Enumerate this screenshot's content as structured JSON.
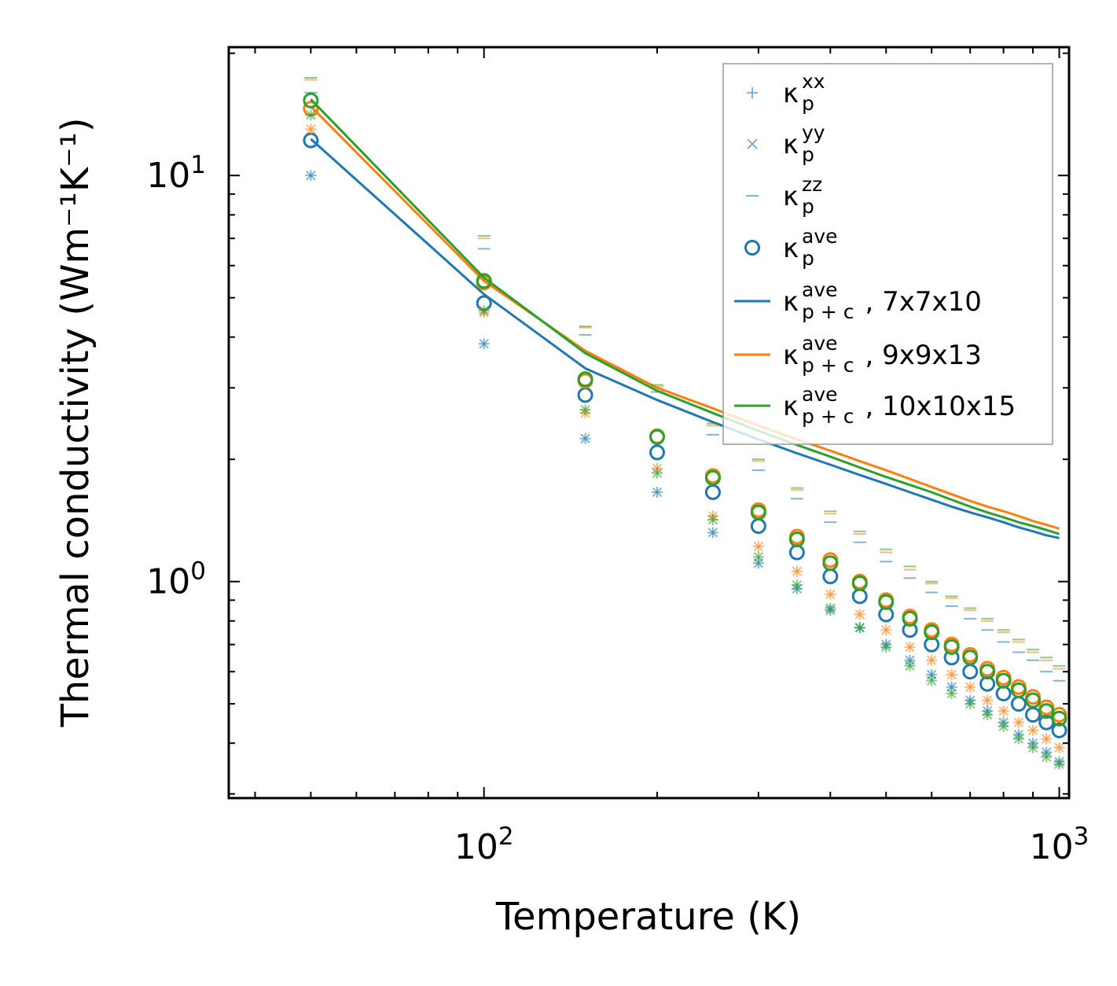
{
  "chart_data": {
    "type": "scatter",
    "title": "",
    "xlabel": "Temperature (K)",
    "ylabel": "Thermal conductivity (Wm⁻¹K⁻¹)",
    "xscale": "log",
    "yscale": "log",
    "xlim": [
      36,
      1040
    ],
    "ylim": [
      0.293,
      20.7
    ],
    "x_ticks": [
      {
        "base": "10",
        "exp": "2",
        "value": 100
      },
      {
        "base": "10",
        "exp": "3",
        "value": 1000
      }
    ],
    "y_ticks": [
      {
        "base": "10",
        "exp": "0",
        "value": 1
      },
      {
        "base": "10",
        "exp": "1",
        "value": 10
      }
    ],
    "x": [
      50,
      100,
      150,
      200,
      250,
      300,
      350,
      400,
      450,
      500,
      550,
      600,
      650,
      700,
      750,
      800,
      850,
      900,
      950,
      1000
    ],
    "series": [
      {
        "name": "7x7x10",
        "color": "#1f77b4",
        "xx": [
          10.0,
          3.85,
          2.25,
          1.66,
          1.32,
          1.11,
          0.96,
          0.85,
          0.77,
          0.7,
          0.64,
          0.59,
          0.55,
          0.51,
          0.48,
          0.45,
          0.42,
          0.4,
          0.38,
          0.36
        ],
        "yy": [
          10.0,
          3.85,
          2.25,
          1.66,
          1.32,
          1.11,
          0.96,
          0.85,
          0.77,
          0.7,
          0.64,
          0.59,
          0.55,
          0.51,
          0.48,
          0.45,
          0.42,
          0.4,
          0.38,
          0.36
        ],
        "zz": [
          16.0,
          6.6,
          4.05,
          2.93,
          2.3,
          1.88,
          1.6,
          1.4,
          1.25,
          1.12,
          1.02,
          0.94,
          0.87,
          0.81,
          0.76,
          0.71,
          0.67,
          0.64,
          0.6,
          0.57
        ],
        "ave": [
          12.2,
          4.85,
          2.88,
          2.08,
          1.66,
          1.37,
          1.18,
          1.03,
          0.92,
          0.83,
          0.76,
          0.7,
          0.65,
          0.6,
          0.56,
          0.53,
          0.5,
          0.47,
          0.45,
          0.43
        ],
        "line_label": "7x7x10",
        "line": [
          12.3,
          5.1,
          3.35,
          2.8,
          2.47,
          2.24,
          2.07,
          1.94,
          1.83,
          1.74,
          1.66,
          1.59,
          1.53,
          1.48,
          1.44,
          1.4,
          1.36,
          1.33,
          1.3,
          1.28
        ]
      },
      {
        "name": "9x9x13",
        "color": "#ff7f0e",
        "xx": [
          13.0,
          4.6,
          2.6,
          1.9,
          1.45,
          1.22,
          1.06,
          0.93,
          0.83,
          0.76,
          0.69,
          0.64,
          0.59,
          0.55,
          0.51,
          0.48,
          0.45,
          0.43,
          0.41,
          0.39
        ],
        "yy": [
          13.0,
          4.6,
          2.6,
          1.9,
          1.45,
          1.22,
          1.06,
          0.93,
          0.83,
          0.76,
          0.69,
          0.64,
          0.59,
          0.55,
          0.51,
          0.48,
          0.45,
          0.43,
          0.41,
          0.39
        ],
        "zz": [
          17.2,
          7.0,
          4.22,
          3.02,
          2.42,
          1.98,
          1.68,
          1.47,
          1.31,
          1.18,
          1.07,
          0.99,
          0.91,
          0.85,
          0.8,
          0.75,
          0.71,
          0.67,
          0.64,
          0.61
        ],
        "ave": [
          14.6,
          5.45,
          3.12,
          2.28,
          1.82,
          1.5,
          1.29,
          1.13,
          1.0,
          0.9,
          0.82,
          0.76,
          0.7,
          0.66,
          0.61,
          0.58,
          0.55,
          0.52,
          0.49,
          0.47
        ],
        "line_label": "9x9x13",
        "line": [
          14.8,
          5.5,
          3.7,
          3.0,
          2.67,
          2.42,
          2.24,
          2.1,
          1.98,
          1.88,
          1.79,
          1.71,
          1.64,
          1.58,
          1.53,
          1.49,
          1.45,
          1.41,
          1.38,
          1.35
        ]
      },
      {
        "name": "10x10x15",
        "color": "#2ca02c",
        "xx": [
          14.1,
          4.65,
          2.65,
          1.85,
          1.42,
          1.15,
          0.98,
          0.86,
          0.77,
          0.69,
          0.62,
          0.57,
          0.53,
          0.5,
          0.47,
          0.44,
          0.41,
          0.39,
          0.37,
          0.355
        ],
        "yy": [
          14.1,
          4.65,
          2.65,
          1.85,
          1.42,
          1.15,
          0.98,
          0.86,
          0.77,
          0.69,
          0.62,
          0.57,
          0.53,
          0.5,
          0.47,
          0.44,
          0.41,
          0.39,
          0.37,
          0.355
        ],
        "zz": [
          17.4,
          7.1,
          4.25,
          3.05,
          2.45,
          2.0,
          1.7,
          1.49,
          1.33,
          1.2,
          1.09,
          1.0,
          0.92,
          0.86,
          0.81,
          0.76,
          0.72,
          0.68,
          0.65,
          0.62
        ],
        "ave": [
          15.3,
          5.5,
          3.15,
          2.27,
          1.8,
          1.48,
          1.27,
          1.11,
          0.99,
          0.89,
          0.81,
          0.75,
          0.69,
          0.65,
          0.6,
          0.57,
          0.54,
          0.51,
          0.48,
          0.46
        ],
        "line_label": "10x10x15",
        "line": [
          15.4,
          5.6,
          3.65,
          2.95,
          2.6,
          2.35,
          2.17,
          2.03,
          1.91,
          1.81,
          1.73,
          1.66,
          1.59,
          1.53,
          1.48,
          1.44,
          1.4,
          1.37,
          1.34,
          1.31
        ]
      }
    ],
    "legend": {
      "position": "top-right",
      "kappa": "κ",
      "sub_p": "p",
      "sub_pc": "p + c",
      "entries": [
        {
          "marker": "plus",
          "sup": "xx",
          "sub": "p",
          "suffix": "",
          "color": "#1f77b4"
        },
        {
          "marker": "cross",
          "sup": "yy",
          "sub": "p",
          "suffix": "",
          "color": "#1f77b4"
        },
        {
          "marker": "dash",
          "sup": "zz",
          "sub": "p",
          "suffix": "",
          "color": "#1f77b4"
        },
        {
          "marker": "circle",
          "sup": "ave",
          "sub": "p",
          "suffix": "",
          "color": "#1f77b4"
        },
        {
          "marker": "line",
          "sup": "ave",
          "sub": "p + c",
          "suffix": ", 7x7x10",
          "color": "#1f77b4"
        },
        {
          "marker": "line",
          "sup": "ave",
          "sub": "p + c",
          "suffix": ", 9x9x13",
          "color": "#ff7f0e"
        },
        {
          "marker": "line",
          "sup": "ave",
          "sub": "p + c",
          "suffix": ", 10x10x15",
          "color": "#2ca02c"
        }
      ]
    }
  }
}
